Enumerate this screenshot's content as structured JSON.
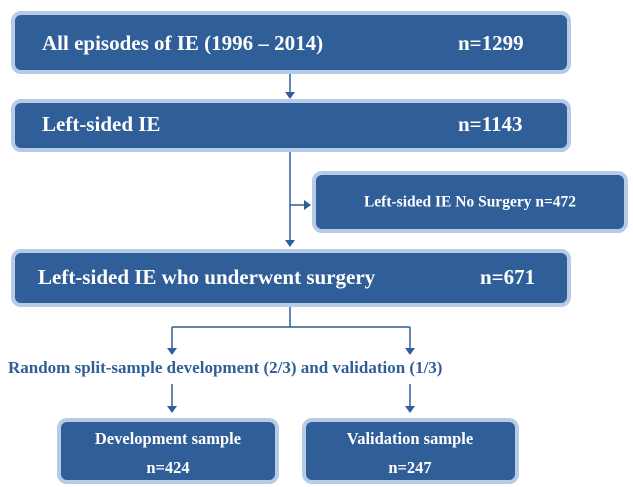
{
  "nodes": [
    {
      "title": "All episodes of IE  (1996 – 2014)",
      "count": "n=1299"
    },
    {
      "title": "Left-sided  IE",
      "count": "n=1143"
    },
    {
      "title": "Left-sided IE No Surgery n=472"
    },
    {
      "title": "Left-sided IE who underwent surgery",
      "count": "n=671"
    },
    {
      "title": "Development sample",
      "count": "n=424"
    },
    {
      "title": "Validation sample",
      "count": "n=247"
    }
  ],
  "split_label": "Random split-sample development (2/3) and validation (1/3)"
}
